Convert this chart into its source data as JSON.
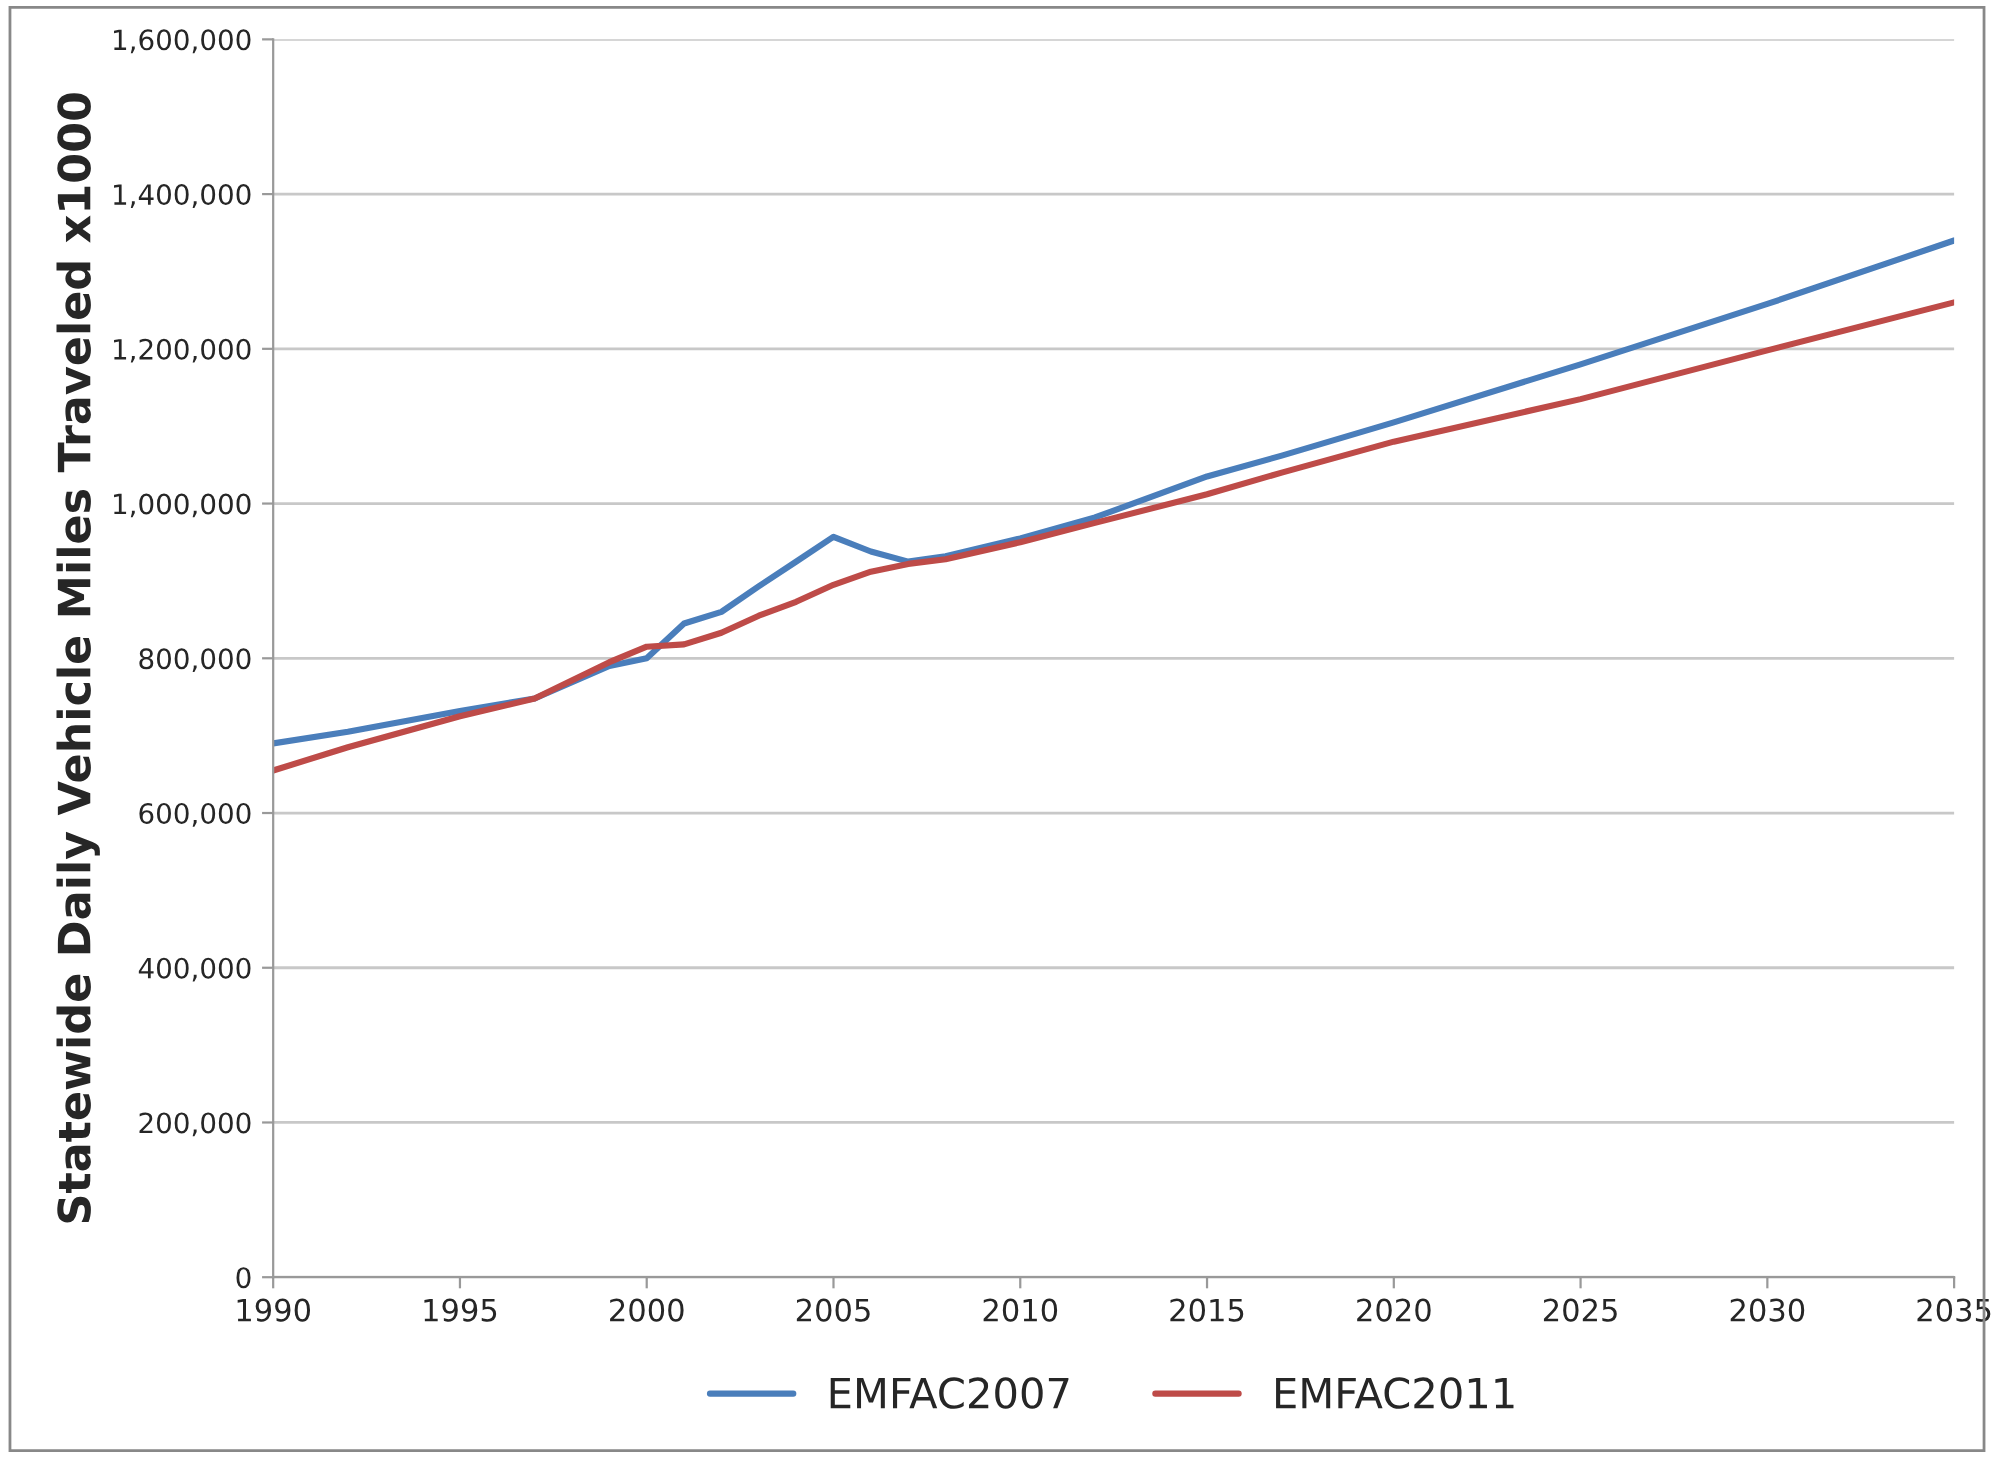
{
  "chart_data": {
    "type": "line",
    "ylabel": "Statewide Daily Vehicle Miles Traveled x1000",
    "x": [
      1990,
      1992,
      1995,
      1997,
      1999,
      2000,
      2001,
      2002,
      2003,
      2004,
      2005,
      2006,
      2007,
      2008,
      2010,
      2012,
      2015,
      2017,
      2020,
      2025,
      2030,
      2035
    ],
    "series": [
      {
        "name": "EMFAC2007",
        "color": "#4a7ebb",
        "values": [
          690000,
          705000,
          732000,
          748000,
          790000,
          800000,
          845000,
          860000,
          893000,
          925000,
          957000,
          938000,
          925000,
          932000,
          955000,
          982000,
          1035000,
          1062000,
          1105000,
          1180000,
          1258000,
          1340000
        ]
      },
      {
        "name": "EMFAC2011",
        "color": "#be4b48",
        "values": [
          655000,
          685000,
          725000,
          748000,
          795000,
          815000,
          818000,
          833000,
          855000,
          873000,
          895000,
          912000,
          922000,
          928000,
          950000,
          975000,
          1012000,
          1040000,
          1080000,
          1135000,
          1198000,
          1260000
        ]
      }
    ],
    "xlim": [
      1990,
      2035
    ],
    "xticks": [
      1990,
      1995,
      2000,
      2005,
      2010,
      2015,
      2020,
      2025,
      2030,
      2035
    ],
    "ylim": [
      0,
      1600000
    ],
    "yticks": [
      {
        "value": 0,
        "label": "0"
      },
      {
        "value": 200000,
        "label": "200,000"
      },
      {
        "value": 400000,
        "label": "400,000"
      },
      {
        "value": 600000,
        "label": "600,000"
      },
      {
        "value": 800000,
        "label": "800,000"
      },
      {
        "value": 1000000,
        "label": "1,000,000"
      },
      {
        "value": 1200000,
        "label": "1,200,000"
      },
      {
        "value": 1400000,
        "label": "1,400,000"
      },
      {
        "value": 1600000,
        "label": "1,600,000"
      }
    ],
    "grid": "y",
    "legend": "bottom",
    "marker": "none",
    "line_style": "solid"
  }
}
